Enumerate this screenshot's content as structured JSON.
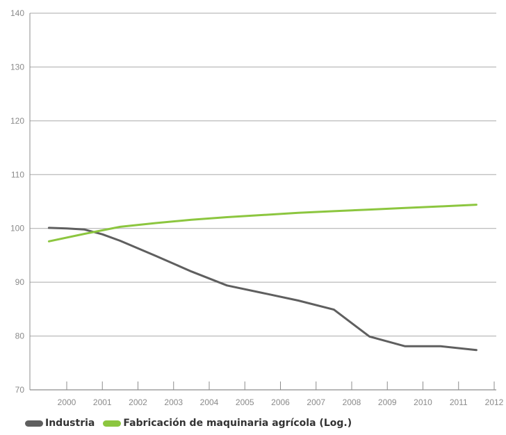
{
  "chart_data": {
    "type": "line",
    "x": [
      "2000",
      "2001",
      "2002",
      "2003",
      "2004",
      "2005",
      "2006",
      "2007",
      "2008",
      "2009",
      "2010",
      "2011"
    ],
    "x_ticks": [
      "2000",
      "2001",
      "2002",
      "2003",
      "2004",
      "2005",
      "2006",
      "2007",
      "2008",
      "2009",
      "2010",
      "2011",
      "2012"
    ],
    "y_ticks": [
      "70",
      "80",
      "90",
      "100",
      "110",
      "120",
      "130",
      "140"
    ],
    "ylim": [
      70,
      140
    ],
    "grid": true,
    "title": "",
    "xlabel": "",
    "ylabel": "",
    "legend_position": "bottom-left",
    "series": [
      {
        "name": "Industria",
        "color": "#5f5f5f",
        "points": [
          [
            1999.5,
            100.1
          ],
          [
            2000.0,
            100.0
          ],
          [
            2000.5,
            99.8
          ],
          [
            2001.0,
            98.9
          ],
          [
            2001.5,
            97.7
          ],
          [
            2002.5,
            94.9
          ],
          [
            2003.5,
            92.0
          ],
          [
            2004.5,
            89.4
          ],
          [
            2005.5,
            88.0
          ],
          [
            2006.5,
            86.6
          ],
          [
            2007.5,
            84.9
          ],
          [
            2008.5,
            79.9
          ],
          [
            2009.5,
            78.1
          ],
          [
            2010.5,
            78.1
          ],
          [
            2011.5,
            77.4
          ]
        ]
      },
      {
        "name": "Fabricación de maquinaria agrícola (Log.)",
        "color": "#8cc63f",
        "points": [
          [
            1999.5,
            97.6
          ],
          [
            2000.5,
            99.0
          ],
          [
            2001.5,
            100.3
          ],
          [
            2002.5,
            101.0
          ],
          [
            2003.5,
            101.6
          ],
          [
            2004.5,
            102.1
          ],
          [
            2005.5,
            102.5
          ],
          [
            2006.5,
            102.9
          ],
          [
            2007.5,
            103.2
          ],
          [
            2008.5,
            103.5
          ],
          [
            2009.5,
            103.8
          ],
          [
            2010.5,
            104.1
          ],
          [
            2011.5,
            104.4
          ]
        ]
      }
    ]
  },
  "legend": {
    "items": [
      {
        "label": "Industria",
        "color": "#5f5f5f"
      },
      {
        "label": "Fabricación de maquinaria agrícola (Log.)",
        "color": "#8cc63f"
      }
    ]
  }
}
